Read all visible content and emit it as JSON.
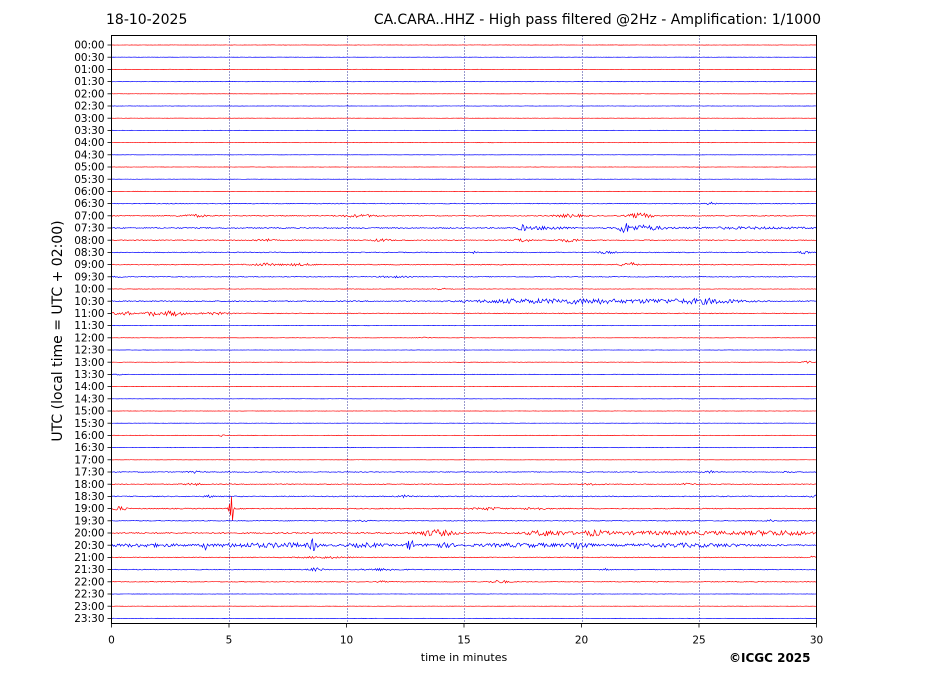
{
  "header": {
    "date": "18-10-2025",
    "title": "CA.CARA..HHZ - High pass filtered @2Hz - Amplification: 1/1000"
  },
  "footer": {
    "copyright": "©ICGC 2025"
  },
  "colors": {
    "even_trace": "#ff0000",
    "odd_trace": "#0000ff",
    "grid": "#000080"
  },
  "chart_data": {
    "type": "line",
    "title": "CA.CARA..HHZ - High pass filtered @2Hz - Amplification: 1/1000",
    "xlabel": "time in minutes",
    "ylabel": "UTC (local time = UTC + 02:00)",
    "xlim": [
      0,
      30
    ],
    "x_ticks": [
      "0",
      "5",
      "10",
      "15",
      "20",
      "25",
      "30"
    ],
    "grid": "vertical dotted at 5-minute intervals",
    "rows": [
      "00:00",
      "00:30",
      "01:00",
      "01:30",
      "02:00",
      "02:30",
      "03:00",
      "03:30",
      "04:00",
      "04:30",
      "05:00",
      "05:30",
      "06:00",
      "06:30",
      "07:00",
      "07:30",
      "08:00",
      "08:30",
      "09:00",
      "09:30",
      "10:00",
      "10:30",
      "11:00",
      "11:30",
      "12:00",
      "12:30",
      "13:00",
      "13:30",
      "14:00",
      "14:30",
      "15:00",
      "15:30",
      "16:00",
      "16:30",
      "17:00",
      "17:30",
      "18:00",
      "18:30",
      "19:00",
      "19:30",
      "20:00",
      "20:30",
      "21:00",
      "21:30",
      "22:00",
      "22:30",
      "23:00",
      "23:30"
    ],
    "row_colors": "alternating red / blue",
    "activity": [
      {
        "row": "01:30",
        "events": [
          [
            8.5,
            0.15,
            0.4
          ]
        ],
        "noise": 0.2
      },
      {
        "row": "06:30",
        "events": [
          [
            25.5,
            0.2,
            1.2
          ]
        ],
        "noise": 0.35
      },
      {
        "row": "07:00",
        "events": [
          [
            3.5,
            0.6,
            1.2
          ],
          [
            10.5,
            0.8,
            1.2
          ],
          [
            19.5,
            0.6,
            1.5
          ],
          [
            22.5,
            0.5,
            2.5
          ]
        ],
        "noise": 0.4
      },
      {
        "row": "07:30",
        "events": [
          [
            17.5,
            0.2,
            2.5
          ],
          [
            18.5,
            0.9,
            1.5
          ],
          [
            21.8,
            0.2,
            5
          ],
          [
            22.6,
            0.8,
            2.5
          ],
          [
            27,
            3,
            0.8
          ]
        ],
        "noise": 0.5
      },
      {
        "row": "08:00",
        "events": [
          [
            6.5,
            0.4,
            1.2
          ],
          [
            11.5,
            0.4,
            1.2
          ],
          [
            17.5,
            0.3,
            2
          ],
          [
            19.5,
            0.5,
            1.5
          ]
        ],
        "noise": 0.4
      },
      {
        "row": "08:30",
        "events": [
          [
            15.5,
            0.1,
            2
          ],
          [
            21,
            0.4,
            1
          ],
          [
            29.5,
            0.2,
            1.5
          ]
        ],
        "noise": 0.4
      },
      {
        "row": "09:00",
        "events": [
          [
            6.5,
            0.6,
            1.2
          ],
          [
            22,
            0.3,
            2.5
          ],
          [
            8,
            0.6,
            1
          ]
        ],
        "noise": 0.4
      },
      {
        "row": "09:30",
        "events": [
          [
            0.3,
            0.2,
            1
          ],
          [
            12,
            0.6,
            0.8
          ]
        ],
        "noise": 0.3
      },
      {
        "row": "10:00",
        "events": [
          [
            14,
            0.4,
            0.8
          ]
        ],
        "noise": 0.2
      },
      {
        "row": "10:30",
        "events": [
          [
            18,
            2,
            1.5
          ],
          [
            20.5,
            1.5,
            2.2
          ],
          [
            25.2,
            1.5,
            2.6
          ],
          [
            23,
            1,
            1.5
          ],
          [
            16.5,
            1.5,
            0.8
          ]
        ],
        "noise": 0.5
      },
      {
        "row": "11:00",
        "events": [
          [
            0.5,
            0.4,
            2
          ],
          [
            1.7,
            0.25,
            2.5
          ],
          [
            2.6,
            0.5,
            2.5
          ],
          [
            4.3,
            0.6,
            1.2
          ]
        ],
        "noise": 0.35
      },
      {
        "row": "12:00",
        "events": [
          [
            13.3,
            0.3,
            0.8
          ]
        ],
        "noise": 0.15
      },
      {
        "row": "13:00",
        "events": [
          [
            29.6,
            0.3,
            1
          ]
        ],
        "noise": 0.15
      },
      {
        "row": "13:30",
        "events": [
          [
            0.3,
            0.2,
            0.6
          ]
        ],
        "noise": 0.15
      },
      {
        "row": "16:00",
        "events": [
          [
            4.7,
            0.1,
            1
          ]
        ],
        "noise": 0.15
      },
      {
        "row": "17:30",
        "events": [
          [
            3.5,
            0.3,
            1
          ],
          [
            25.5,
            0.2,
            1.2
          ],
          [
            28.8,
            0.2,
            1
          ]
        ],
        "noise": 0.35
      },
      {
        "row": "18:00",
        "events": [
          [
            3.5,
            0.4,
            1
          ],
          [
            20.5,
            0.4,
            0.8
          ],
          [
            24.5,
            0.3,
            0.8
          ]
        ],
        "noise": 0.35
      },
      {
        "row": "18:30",
        "events": [
          [
            4.2,
            0.2,
            1.2
          ],
          [
            12.5,
            0.3,
            1
          ],
          [
            30,
            0.2,
            1.5
          ]
        ],
        "noise": 0.45
      },
      {
        "row": "19:00",
        "events": [
          [
            0.3,
            0.3,
            2
          ],
          [
            5.1,
            0.08,
            18
          ],
          [
            16,
            0.6,
            1.2
          ],
          [
            18,
            0.5,
            1.2
          ]
        ],
        "noise": 0.45
      },
      {
        "row": "19:30",
        "events": [
          [
            10.7,
            0.3,
            0.8
          ],
          [
            28,
            0.2,
            1
          ]
        ],
        "noise": 0.3
      },
      {
        "row": "20:00",
        "events": [
          [
            13.8,
            0.8,
            3
          ],
          [
            18.5,
            0.8,
            2.5
          ],
          [
            20.5,
            0.5,
            2
          ],
          [
            24,
            4,
            1.5
          ],
          [
            28.5,
            1.5,
            1.8
          ]
        ],
        "noise": 0.6
      },
      {
        "row": "20:30",
        "events": [
          [
            4,
            0.1,
            5
          ],
          [
            8.6,
            0.15,
            5.5
          ],
          [
            12.7,
            0.15,
            6.5
          ],
          [
            7.5,
            1.2,
            1.8
          ],
          [
            10.8,
            0.8,
            1.8
          ],
          [
            14,
            0.6,
            2
          ],
          [
            19.9,
            0.4,
            3.5
          ],
          [
            17.5,
            2,
            1.5
          ],
          [
            24.5,
            2.5,
            1.5
          ],
          [
            5.5,
            1.2,
            1.5
          ],
          [
            1.5,
            1.5,
            1.2
          ]
        ],
        "noise": 0.75
      },
      {
        "row": "21:00",
        "events": [
          [
            9,
            1,
            0.8
          ],
          [
            29.8,
            0.2,
            1
          ]
        ],
        "noise": 0.35
      },
      {
        "row": "21:30",
        "events": [
          [
            8.7,
            0.3,
            1.5
          ],
          [
            11.5,
            0.8,
            1
          ],
          [
            21,
            0.2,
            1.2
          ]
        ],
        "noise": 0.35
      },
      {
        "row": "22:00",
        "events": [
          [
            16.5,
            0.4,
            1.5
          ],
          [
            11.5,
            0.2,
            0.8
          ]
        ],
        "noise": 0.3
      }
    ]
  }
}
